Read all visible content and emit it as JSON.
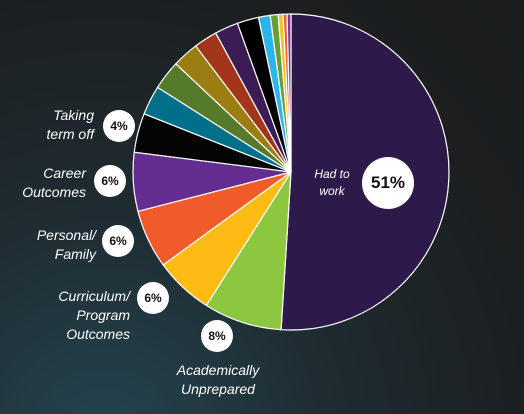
{
  "chart_data": {
    "type": "pie",
    "slices": [
      {
        "label": "Had to work",
        "value": 51,
        "display": "51%",
        "color": "#2e1a4a"
      },
      {
        "label": "Academically Unprepared",
        "value": 8,
        "display": "8%",
        "color": "#8dc63f"
      },
      {
        "label": "Curriculum/ Program Outcomes",
        "value": 6,
        "display": "6%",
        "color": "#fdbb14"
      },
      {
        "label": "Personal/ Family",
        "value": 6,
        "display": "6%",
        "color": "#f15a29"
      },
      {
        "label": "Career Outcomes",
        "value": 6,
        "display": "6%",
        "color": "#662d91"
      },
      {
        "label": "Taking term off",
        "value": 4,
        "display": "4%",
        "color": "#050505"
      },
      {
        "label": "",
        "value": 3,
        "color": "#006f8a"
      },
      {
        "label": "",
        "value": 3,
        "color": "#557b2a"
      },
      {
        "label": "",
        "value": 2.7,
        "color": "#9c7d12"
      },
      {
        "label": "",
        "value": 2.4,
        "color": "#a3351a"
      },
      {
        "label": "",
        "value": 2.4,
        "color": "#3b1c55"
      },
      {
        "label": "",
        "value": 2.2,
        "color": "#000000"
      },
      {
        "label": "",
        "value": 1.2,
        "color": "#2ab6ea"
      },
      {
        "label": "",
        "value": 0.8,
        "color": "#6a9c3a"
      },
      {
        "label": "",
        "value": 0.5,
        "color": "#f2c230"
      },
      {
        "label": "",
        "value": 0.4,
        "color": "#e8623a"
      },
      {
        "label": "",
        "value": 0.4,
        "color": "#7a3a9c"
      }
    ]
  },
  "labels": {
    "had_to_work_line1": "Had to",
    "had_to_work_line2": "work",
    "academically_line1": "Academically",
    "academically_line2": "Unprepared",
    "curriculum_line1": "Curriculum/",
    "curriculum_line2": "Program",
    "curriculum_line3": "Outcomes",
    "personal_line1": "Personal/",
    "personal_line2": "Family",
    "career_line1": "Career",
    "career_line2": "Outcomes",
    "taking_line1": "Taking",
    "taking_line2": "term off"
  },
  "badges": {
    "had_to_work": "51%",
    "academically": "8%",
    "curriculum": "6%",
    "personal": "6%",
    "career": "6%",
    "taking": "4%"
  }
}
